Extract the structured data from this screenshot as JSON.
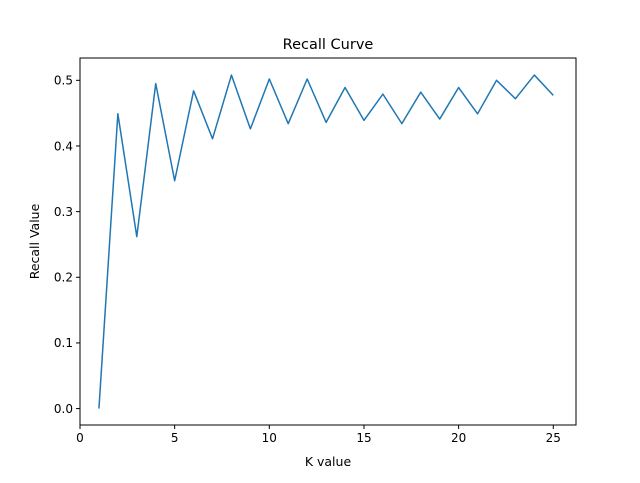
{
  "chart_data": {
    "type": "line",
    "title": "Recall Curve",
    "xlabel": "K value",
    "ylabel": "Recall Value",
    "xlim": [
      0,
      26.2
    ],
    "ylim": [
      -0.025,
      0.534
    ],
    "xticks": [
      0,
      5,
      10,
      15,
      20,
      25
    ],
    "yticks": [
      0.0,
      0.1,
      0.2,
      0.3,
      0.4,
      0.5
    ],
    "xtick_labels": [
      "0",
      "5",
      "10",
      "15",
      "20",
      "25"
    ],
    "ytick_labels": [
      "0.0",
      "0.1",
      "0.2",
      "0.3",
      "0.4",
      "0.5"
    ],
    "grid": false,
    "legend": "none",
    "series": [
      {
        "color": "#1f77b4",
        "x": [
          1,
          2,
          3,
          4,
          5,
          6,
          7,
          8,
          9,
          10,
          11,
          12,
          13,
          14,
          15,
          16,
          17,
          18,
          19,
          20,
          21,
          22,
          23,
          24,
          25
        ],
        "y": [
          0.0,
          0.449,
          0.262,
          0.495,
          0.347,
          0.484,
          0.411,
          0.508,
          0.426,
          0.502,
          0.434,
          0.502,
          0.436,
          0.489,
          0.439,
          0.479,
          0.434,
          0.482,
          0.441,
          0.489,
          0.449,
          0.5,
          0.472,
          0.508,
          0.477
        ]
      }
    ]
  }
}
